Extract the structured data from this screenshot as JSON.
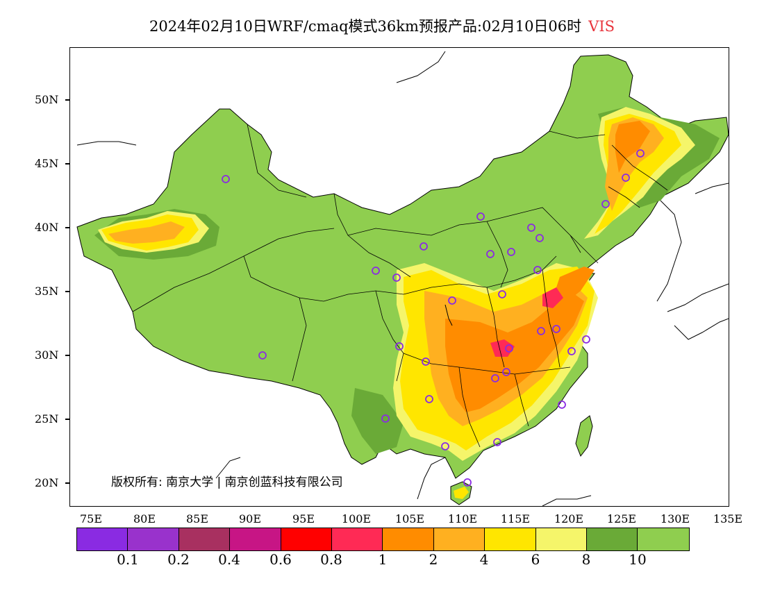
{
  "title": {
    "text": "2024年02月10日WRF/cmaq模式36km预报产品:02月10日06时",
    "variable": "VIS",
    "variable_color": "#e8343c"
  },
  "axes": {
    "lat_labels": [
      "50N",
      "45N",
      "40N",
      "35N",
      "30N",
      "25N",
      "20N"
    ],
    "lon_labels": [
      "75E",
      "80E",
      "85E",
      "90E",
      "95E",
      "100E",
      "105E",
      "110E",
      "115E",
      "120E",
      "125E",
      "130E",
      "135E"
    ]
  },
  "copyright": "版权所有: 南京大学 | 南京创蓝科技有限公司",
  "colorbar": {
    "colors": [
      "#8a2be2",
      "#9932cc",
      "#a83060",
      "#c71585",
      "#ff0000",
      "#ff2a55",
      "#ff8c00",
      "#ffb020",
      "#ffe600",
      "#f5f56a",
      "#6aaa37",
      "#8fce4f"
    ],
    "labels": [
      "0.1",
      "0.2",
      "0.4",
      "0.6",
      "0.8",
      "1",
      "2",
      "4",
      "6",
      "8",
      "10"
    ]
  },
  "map_colors": {
    "land_good": "#8fce4f",
    "land_dark": "#6aaa37",
    "yellow_light": "#f5f56a",
    "yellow": "#ffe600",
    "orange_light": "#ffb020",
    "orange": "#ff8c00",
    "red": "#ff2a55",
    "border": "#000000",
    "station": "#8a2be2"
  }
}
